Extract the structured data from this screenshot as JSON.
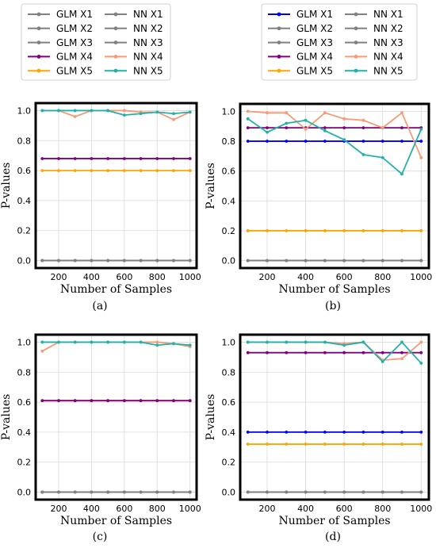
{
  "legends": [
    {
      "entries": [
        {
          "label": "GLM X1",
          "color": "#808080"
        },
        {
          "label": "GLM X2",
          "color": "#808080"
        },
        {
          "label": "GLM X3",
          "color": "#808080"
        },
        {
          "label": "GLM X4",
          "color": "#800080"
        },
        {
          "label": "GLM X5",
          "color": "#ffa500"
        },
        {
          "label": "NN X1",
          "color": "#808080"
        },
        {
          "label": "NN X2",
          "color": "#808080"
        },
        {
          "label": "NN X3",
          "color": "#808080"
        },
        {
          "label": "NN X4",
          "color": "#fa9a75"
        },
        {
          "label": "NN X5",
          "color": "#20b2aa"
        }
      ]
    },
    {
      "entries": [
        {
          "label": "GLM X1",
          "color": "#0000ff"
        },
        {
          "label": "GLM X2",
          "color": "#808080"
        },
        {
          "label": "GLM X3",
          "color": "#808080"
        },
        {
          "label": "GLM X4",
          "color": "#800080"
        },
        {
          "label": "GLM X5",
          "color": "#ffa500"
        },
        {
          "label": "NN X1",
          "color": "#808080"
        },
        {
          "label": "NN X2",
          "color": "#808080"
        },
        {
          "label": "NN X3",
          "color": "#808080"
        },
        {
          "label": "NN X4",
          "color": "#fa9a75"
        },
        {
          "label": "NN X5",
          "color": "#20b2aa"
        }
      ]
    }
  ],
  "chart_data": [
    {
      "type": "line",
      "caption": "(a)",
      "xlabel": "Number of Samples",
      "ylabel": "P-values",
      "xlim": [
        60,
        1040
      ],
      "ylim": [
        -0.05,
        1.05
      ],
      "x": [
        100,
        200,
        300,
        400,
        500,
        600,
        700,
        800,
        900,
        1000
      ],
      "xticks": [
        200,
        400,
        600,
        800,
        1000
      ],
      "yticks": [
        "0.0",
        "0.2",
        "0.4",
        "0.6",
        "0.8",
        "1.0"
      ],
      "grid": true,
      "series": [
        {
          "name": "GLM X1",
          "color": "#808080",
          "values": [
            0,
            0,
            0,
            0,
            0,
            0,
            0,
            0,
            0,
            0
          ]
        },
        {
          "name": "GLM X2",
          "color": "#808080",
          "values": [
            0,
            0,
            0,
            0,
            0,
            0,
            0,
            0,
            0,
            0
          ]
        },
        {
          "name": "GLM X3",
          "color": "#808080",
          "values": [
            0,
            0,
            0,
            0,
            0,
            0,
            0,
            0,
            0,
            0
          ]
        },
        {
          "name": "NN X1",
          "color": "#808080",
          "values": [
            0,
            0,
            0,
            0,
            0,
            0,
            0,
            0,
            0,
            0
          ]
        },
        {
          "name": "NN X2",
          "color": "#808080",
          "values": [
            0,
            0,
            0,
            0,
            0,
            0,
            0,
            0,
            0,
            0
          ]
        },
        {
          "name": "NN X3",
          "color": "#808080",
          "values": [
            0,
            0,
            0,
            0,
            0,
            0,
            0,
            0,
            0,
            0
          ]
        },
        {
          "name": "GLM X4",
          "color": "#800080",
          "values": [
            0.68,
            0.68,
            0.68,
            0.68,
            0.68,
            0.68,
            0.68,
            0.68,
            0.68,
            0.68
          ]
        },
        {
          "name": "GLM X5",
          "color": "#ffa500",
          "values": [
            0.6,
            0.6,
            0.6,
            0.6,
            0.6,
            0.6,
            0.6,
            0.6,
            0.6,
            0.6
          ]
        },
        {
          "name": "NN X4",
          "color": "#fa9a75",
          "values": [
            1.0,
            1.0,
            0.96,
            1.0,
            1.0,
            1.0,
            0.99,
            0.99,
            0.94,
            0.99
          ]
        },
        {
          "name": "NN X5",
          "color": "#20b2aa",
          "values": [
            1.0,
            1.0,
            1.0,
            1.0,
            1.0,
            0.97,
            0.98,
            0.99,
            0.98,
            0.99
          ]
        }
      ]
    },
    {
      "type": "line",
      "caption": "(b)",
      "xlabel": "Number of Samples",
      "ylabel": "P-values",
      "xlim": [
        60,
        1040
      ],
      "ylim": [
        -0.05,
        1.05
      ],
      "x": [
        100,
        200,
        300,
        400,
        500,
        600,
        700,
        800,
        900,
        1000
      ],
      "xticks": [
        200,
        400,
        600,
        800,
        1000
      ],
      "yticks": [
        "0.0",
        "0.2",
        "0.4",
        "0.6",
        "0.8",
        "1.0"
      ],
      "grid": true,
      "series": [
        {
          "name": "GLM X2",
          "color": "#808080",
          "values": [
            0,
            0,
            0,
            0,
            0,
            0,
            0,
            0,
            0,
            0
          ]
        },
        {
          "name": "GLM X3",
          "color": "#808080",
          "values": [
            0,
            0,
            0,
            0,
            0,
            0,
            0,
            0,
            0,
            0
          ]
        },
        {
          "name": "NN X1",
          "color": "#808080",
          "values": [
            0,
            0,
            0,
            0,
            0,
            0,
            0,
            0,
            0,
            0
          ]
        },
        {
          "name": "NN X2",
          "color": "#808080",
          "values": [
            0,
            0,
            0,
            0,
            0,
            0,
            0,
            0,
            0,
            0
          ]
        },
        {
          "name": "NN X3",
          "color": "#808080",
          "values": [
            0,
            0,
            0,
            0,
            0,
            0,
            0,
            0,
            0,
            0
          ]
        },
        {
          "name": "GLM X5",
          "color": "#ffa500",
          "values": [
            0.2,
            0.2,
            0.2,
            0.2,
            0.2,
            0.2,
            0.2,
            0.2,
            0.2,
            0.2
          ]
        },
        {
          "name": "GLM X1",
          "color": "#0000ff",
          "values": [
            0.8,
            0.8,
            0.8,
            0.8,
            0.8,
            0.8,
            0.8,
            0.8,
            0.8,
            0.8
          ]
        },
        {
          "name": "GLM X4",
          "color": "#800080",
          "values": [
            0.89,
            0.89,
            0.89,
            0.89,
            0.89,
            0.89,
            0.89,
            0.89,
            0.89,
            0.89
          ]
        },
        {
          "name": "NN X4",
          "color": "#fa9a75",
          "values": [
            1.0,
            0.99,
            0.99,
            0.88,
            0.99,
            0.95,
            0.94,
            0.89,
            0.99,
            0.69
          ]
        },
        {
          "name": "NN X5",
          "color": "#20b2aa",
          "values": [
            0.95,
            0.86,
            0.92,
            0.94,
            0.87,
            0.81,
            0.71,
            0.69,
            0.58,
            0.88
          ]
        }
      ]
    },
    {
      "type": "line",
      "caption": "(c)",
      "xlabel": "Number of Samples",
      "ylabel": "P-values",
      "xlim": [
        60,
        1040
      ],
      "ylim": [
        -0.05,
        1.05
      ],
      "x": [
        100,
        200,
        300,
        400,
        500,
        600,
        700,
        800,
        900,
        1000
      ],
      "xticks": [
        200,
        400,
        600,
        800,
        1000
      ],
      "yticks": [
        "0.0",
        "0.2",
        "0.4",
        "0.6",
        "0.8",
        "1.0"
      ],
      "grid": true,
      "series": [
        {
          "name": "GLM X1",
          "color": "#808080",
          "values": [
            0,
            0,
            0,
            0,
            0,
            0,
            0,
            0,
            0,
            0
          ]
        },
        {
          "name": "GLM X2",
          "color": "#808080",
          "values": [
            0,
            0,
            0,
            0,
            0,
            0,
            0,
            0,
            0,
            0
          ]
        },
        {
          "name": "GLM X3",
          "color": "#808080",
          "values": [
            0,
            0,
            0,
            0,
            0,
            0,
            0,
            0,
            0,
            0
          ]
        },
        {
          "name": "NN X1",
          "color": "#808080",
          "values": [
            0,
            0,
            0,
            0,
            0,
            0,
            0,
            0,
            0,
            0
          ]
        },
        {
          "name": "NN X2",
          "color": "#808080",
          "values": [
            0,
            0,
            0,
            0,
            0,
            0,
            0,
            0,
            0,
            0
          ]
        },
        {
          "name": "NN X3",
          "color": "#808080",
          "values": [
            0,
            0,
            0,
            0,
            0,
            0,
            0,
            0,
            0,
            0
          ]
        },
        {
          "name": "GLM X5",
          "color": "#ffa500",
          "values": [
            0.61,
            0.61,
            0.61,
            0.61,
            0.61,
            0.61,
            0.61,
            0.61,
            0.61,
            0.61
          ]
        },
        {
          "name": "GLM X4",
          "color": "#800080",
          "values": [
            0.61,
            0.61,
            0.61,
            0.61,
            0.61,
            0.61,
            0.61,
            0.61,
            0.61,
            0.61
          ]
        },
        {
          "name": "NN X4",
          "color": "#fa9a75",
          "values": [
            0.94,
            1.0,
            1.0,
            1.0,
            1.0,
            1.0,
            1.0,
            1.0,
            0.99,
            0.97
          ]
        },
        {
          "name": "NN X5",
          "color": "#20b2aa",
          "values": [
            1.0,
            1.0,
            1.0,
            1.0,
            1.0,
            1.0,
            1.0,
            0.98,
            0.99,
            0.98
          ]
        }
      ]
    },
    {
      "type": "line",
      "caption": "(d)",
      "xlabel": "Number of Samples",
      "ylabel": "P-values",
      "xlim": [
        60,
        1040
      ],
      "ylim": [
        -0.05,
        1.05
      ],
      "x": [
        100,
        200,
        300,
        400,
        500,
        600,
        700,
        800,
        900,
        1000
      ],
      "xticks": [
        200,
        400,
        600,
        800,
        1000
      ],
      "yticks": [
        "0.0",
        "0.2",
        "0.4",
        "0.6",
        "0.8",
        "1.0"
      ],
      "grid": true,
      "series": [
        {
          "name": "GLM X2",
          "color": "#808080",
          "values": [
            0,
            0,
            0,
            0,
            0,
            0,
            0,
            0,
            0,
            0
          ]
        },
        {
          "name": "GLM X3",
          "color": "#808080",
          "values": [
            0,
            0,
            0,
            0,
            0,
            0,
            0,
            0,
            0,
            0
          ]
        },
        {
          "name": "NN X1",
          "color": "#808080",
          "values": [
            0,
            0,
            0,
            0,
            0,
            0,
            0,
            0,
            0,
            0
          ]
        },
        {
          "name": "NN X2",
          "color": "#808080",
          "values": [
            0,
            0,
            0,
            0,
            0,
            0,
            0,
            0,
            0,
            0
          ]
        },
        {
          "name": "NN X3",
          "color": "#808080",
          "values": [
            0,
            0,
            0,
            0,
            0,
            0,
            0,
            0,
            0,
            0
          ]
        },
        {
          "name": "GLM X5",
          "color": "#ffa500",
          "values": [
            0.32,
            0.32,
            0.32,
            0.32,
            0.32,
            0.32,
            0.32,
            0.32,
            0.32,
            0.32
          ]
        },
        {
          "name": "GLM X1",
          "color": "#0000ff",
          "values": [
            0.4,
            0.4,
            0.4,
            0.4,
            0.4,
            0.4,
            0.4,
            0.4,
            0.4,
            0.4
          ]
        },
        {
          "name": "GLM X4",
          "color": "#800080",
          "values": [
            0.93,
            0.93,
            0.93,
            0.93,
            0.93,
            0.93,
            0.93,
            0.93,
            0.93,
            0.93
          ]
        },
        {
          "name": "NN X4",
          "color": "#fa9a75",
          "values": [
            1.0,
            1.0,
            1.0,
            1.0,
            1.0,
            0.99,
            1.0,
            0.88,
            0.89,
            1.0
          ]
        },
        {
          "name": "NN X5",
          "color": "#20b2aa",
          "values": [
            1.0,
            1.0,
            1.0,
            1.0,
            1.0,
            0.98,
            1.0,
            0.87,
            1.0,
            0.86
          ]
        }
      ]
    }
  ]
}
